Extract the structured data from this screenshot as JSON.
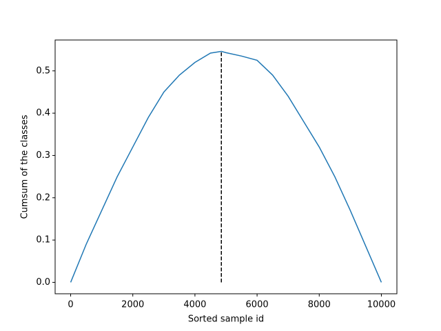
{
  "chart_data": {
    "type": "line",
    "x_label": "Sorted sample id",
    "y_label": "Cumsum of the classes",
    "x": [
      0,
      500,
      1000,
      1500,
      2000,
      2500,
      3000,
      3500,
      4000,
      4500,
      4850,
      5000,
      5500,
      6000,
      6500,
      7000,
      7500,
      8000,
      8500,
      9000,
      9500,
      10000
    ],
    "series": [
      {
        "color": "#1f77b4",
        "values": [
          0,
          0.09,
          0.17,
          0.25,
          0.32,
          0.39,
          0.45,
          0.49,
          0.52,
          0.542,
          0.546,
          0.543,
          0.535,
          0.525,
          0.49,
          0.44,
          0.38,
          0.32,
          0.25,
          0.17,
          0.085,
          0
        ]
      }
    ],
    "vline": {
      "x": 4850,
      "y": [
        0,
        0.546
      ],
      "color": "#000000"
    },
    "xlim": [
      -500,
      10500
    ],
    "ylim": [
      -0.027,
      0.573
    ],
    "xticks": [
      0,
      2000,
      4000,
      6000,
      8000,
      10000
    ],
    "yticks": [
      {
        "value": 0,
        "label": "0.0"
      },
      0.1,
      0.2,
      0.3,
      0.4,
      0.5
    ],
    "grid": false
  }
}
